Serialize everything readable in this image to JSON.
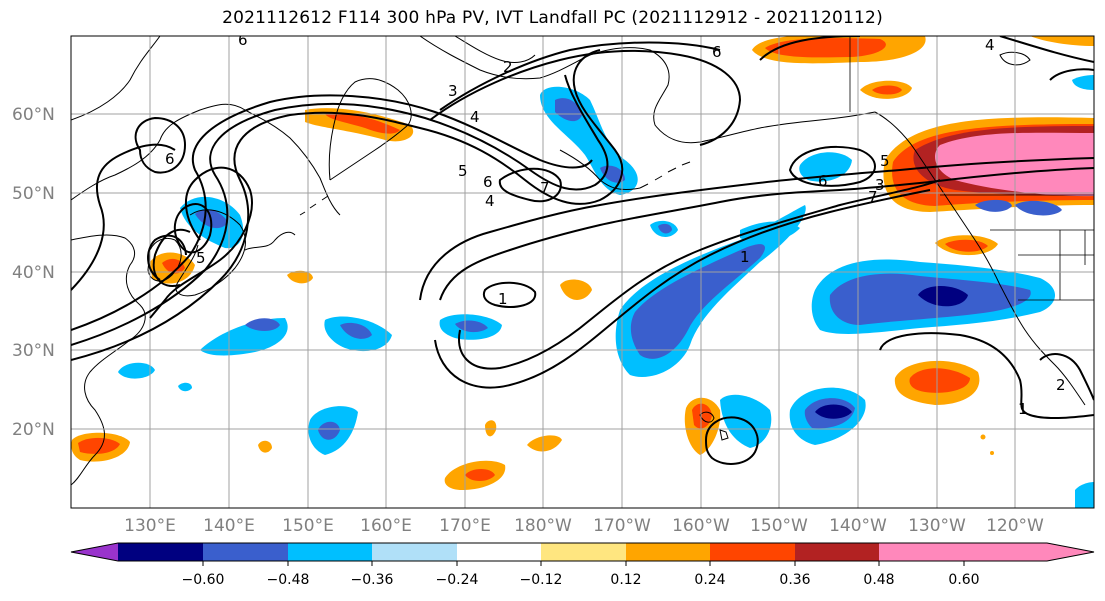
{
  "title": "2021112612 F114 300 hPa PV, IVT Landfall PC (2021112912 - 2021120112)",
  "lat_labels": [
    "60°N",
    "50°N",
    "40°N",
    "30°N",
    "20°N"
  ],
  "lon_labels": [
    "130°E",
    "140°E",
    "150°E",
    "160°E",
    "170°E",
    "180°W",
    "170°W",
    "160°W",
    "150°W",
    "140°W",
    "130°W",
    "120°W"
  ],
  "colorbar": {
    "tick_labels": [
      "−0.60",
      "−0.48",
      "−0.36",
      "−0.24",
      "−0.12",
      "0.12",
      "0.24",
      "0.36",
      "0.48",
      "0.60"
    ],
    "colors": [
      "#9933cc",
      "#000080",
      "#3a5fcd",
      "#00bfff",
      "#b0e0f8",
      "#ffffff",
      "#ffe680",
      "#ffa500",
      "#ff4500",
      "#b22222",
      "#ff88bb"
    ]
  },
  "contour_labels": [
    "6",
    "3",
    "2",
    "4",
    "5",
    "6",
    "7",
    "4",
    "5",
    "6",
    "1",
    "1",
    "6",
    "5",
    "3",
    "7",
    "6",
    "4",
    "1",
    "2"
  ],
  "colors": {
    "orange": "#ffa500",
    "red": "#ff4500",
    "darkred": "#b22222",
    "pink": "#ff88bb",
    "yellow": "#ffe680",
    "navy": "#000080",
    "blue": "#3a5fcd",
    "cyan": "#00bfff",
    "lightblue": "#b0e0f8"
  }
}
